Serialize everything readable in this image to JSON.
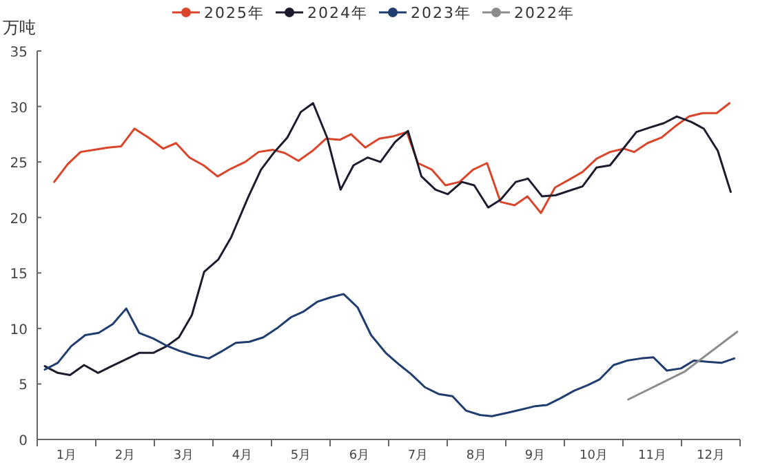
{
  "chart_data": {
    "type": "line",
    "ylabel": "万吨",
    "legend": "top",
    "grid": false,
    "xlim": [
      0,
      12
    ],
    "ylim": [
      0,
      35
    ],
    "yticks": [
      0,
      5,
      10,
      15,
      20,
      25,
      30,
      35
    ],
    "xticks": [
      {
        "value": 0,
        "label": null
      },
      {
        "value": 0.5,
        "label": "1月"
      },
      {
        "value": 1,
        "label": null
      },
      {
        "value": 1.5,
        "label": "2月"
      },
      {
        "value": 2,
        "label": null
      },
      {
        "value": 2.5,
        "label": "3月"
      },
      {
        "value": 3,
        "label": null
      },
      {
        "value": 3.5,
        "label": "4月"
      },
      {
        "value": 4,
        "label": null
      },
      {
        "value": 4.5,
        "label": "5月"
      },
      {
        "value": 5,
        "label": null
      },
      {
        "value": 5.5,
        "label": "6月"
      },
      {
        "value": 6,
        "label": null
      },
      {
        "value": 6.5,
        "label": "7月"
      },
      {
        "value": 7,
        "label": null
      },
      {
        "value": 7.5,
        "label": "8月"
      },
      {
        "value": 8,
        "label": null
      },
      {
        "value": 8.5,
        "label": "9月"
      },
      {
        "value": 9,
        "label": null
      },
      {
        "value": 9.5,
        "label": "10月"
      },
      {
        "value": 10,
        "label": null
      },
      {
        "value": 10.5,
        "label": "11月"
      },
      {
        "value": 11,
        "label": null
      },
      {
        "value": 11.5,
        "label": "12月"
      },
      {
        "value": 12,
        "label": null
      }
    ],
    "series": [
      {
        "name": "2025年",
        "color": "#d9452b",
        "x": [
          0.29,
          0.52,
          0.74,
          0.97,
          1.21,
          1.43,
          1.66,
          1.9,
          2.15,
          2.37,
          2.6,
          2.84,
          3.08,
          3.31,
          3.55,
          3.78,
          4.02,
          4.23,
          4.46,
          4.7,
          4.93,
          5.17,
          5.36,
          5.6,
          5.84,
          6.07,
          6.31,
          6.5,
          6.74,
          6.97,
          7.21,
          7.44,
          7.68,
          7.91,
          8.15,
          8.37,
          8.6,
          8.84,
          9.08,
          9.31,
          9.55,
          9.78,
          10.02,
          10.19,
          10.42,
          10.66,
          10.89,
          11.13,
          11.36,
          11.6,
          11.82
        ],
        "values": [
          23.2,
          24.8,
          25.9,
          26.1,
          26.3,
          26.4,
          28.0,
          27.2,
          26.2,
          26.7,
          25.4,
          24.7,
          23.7,
          24.4,
          25.0,
          25.9,
          26.1,
          25.8,
          25.1,
          26.0,
          27.1,
          27.0,
          27.5,
          26.3,
          27.1,
          27.3,
          27.7,
          24.9,
          24.3,
          22.9,
          23.2,
          24.3,
          24.9,
          21.4,
          21.1,
          21.9,
          20.4,
          22.7,
          23.4,
          24.1,
          25.3,
          25.9,
          26.2,
          25.9,
          26.7,
          27.2,
          28.2,
          29.1,
          29.4,
          29.4,
          30.3
        ]
      },
      {
        "name": "2024年",
        "color": "#1c1c2e",
        "x": [
          0.13,
          0.35,
          0.56,
          0.8,
          1.04,
          1.27,
          1.51,
          1.74,
          1.98,
          2.21,
          2.42,
          2.64,
          2.85,
          3.09,
          3.31,
          3.6,
          3.82,
          4.05,
          4.27,
          4.5,
          4.71,
          4.95,
          5.18,
          5.4,
          5.64,
          5.86,
          6.11,
          6.33,
          6.56,
          6.8,
          7.01,
          7.25,
          7.46,
          7.7,
          7.91,
          8.17,
          8.38,
          8.62,
          8.85,
          9.08,
          9.31,
          9.55,
          9.78,
          10.02,
          10.23,
          10.46,
          10.7,
          10.92,
          11.17,
          11.38,
          11.62,
          11.84
        ],
        "values": [
          6.6,
          6.0,
          5.8,
          6.7,
          6.0,
          6.6,
          7.2,
          7.8,
          7.8,
          8.4,
          9.2,
          11.2,
          15.1,
          16.2,
          18.2,
          21.8,
          24.3,
          25.9,
          27.2,
          29.5,
          30.3,
          27.2,
          22.5,
          24.7,
          25.4,
          25.0,
          26.8,
          27.8,
          23.7,
          22.5,
          22.1,
          23.2,
          22.9,
          20.9,
          21.6,
          23.2,
          23.5,
          21.9,
          22.0,
          22.4,
          22.8,
          24.5,
          24.7,
          26.3,
          27.7,
          28.1,
          28.5,
          29.1,
          28.6,
          28.0,
          26.0,
          22.3
        ]
      },
      {
        "name": "2023年",
        "color": "#1f3d6e",
        "x": [
          0.13,
          0.35,
          0.58,
          0.82,
          1.05,
          1.29,
          1.52,
          1.74,
          1.98,
          2.19,
          2.42,
          2.66,
          2.93,
          3.17,
          3.39,
          3.62,
          3.86,
          4.09,
          4.33,
          4.54,
          4.78,
          5.01,
          5.23,
          5.47,
          5.7,
          5.95,
          6.19,
          6.38,
          6.62,
          6.85,
          7.09,
          7.32,
          7.56,
          7.76,
          8.03,
          8.27,
          8.5,
          8.7,
          8.93,
          9.17,
          9.4,
          9.6,
          9.84,
          10.07,
          10.31,
          10.52,
          10.75,
          10.99,
          11.21,
          11.44,
          11.68,
          11.9
        ],
        "values": [
          6.3,
          6.9,
          8.4,
          9.4,
          9.6,
          10.4,
          11.8,
          9.6,
          9.1,
          8.5,
          8.0,
          7.6,
          7.3,
          8.0,
          8.7,
          8.8,
          9.2,
          10.0,
          11.0,
          11.5,
          12.4,
          12.8,
          13.1,
          11.9,
          9.4,
          7.8,
          6.7,
          5.9,
          4.7,
          4.1,
          3.9,
          2.6,
          2.2,
          2.1,
          2.4,
          2.7,
          3.0,
          3.1,
          3.7,
          4.4,
          4.9,
          5.4,
          6.7,
          7.1,
          7.3,
          7.4,
          6.2,
          6.4,
          7.1,
          7.0,
          6.9,
          7.3
        ]
      },
      {
        "name": "2022年",
        "color": "#8c8c8c",
        "x": [
          10.09,
          11.05,
          11.95
        ],
        "values": [
          3.6,
          6.1,
          9.7
        ]
      }
    ]
  }
}
